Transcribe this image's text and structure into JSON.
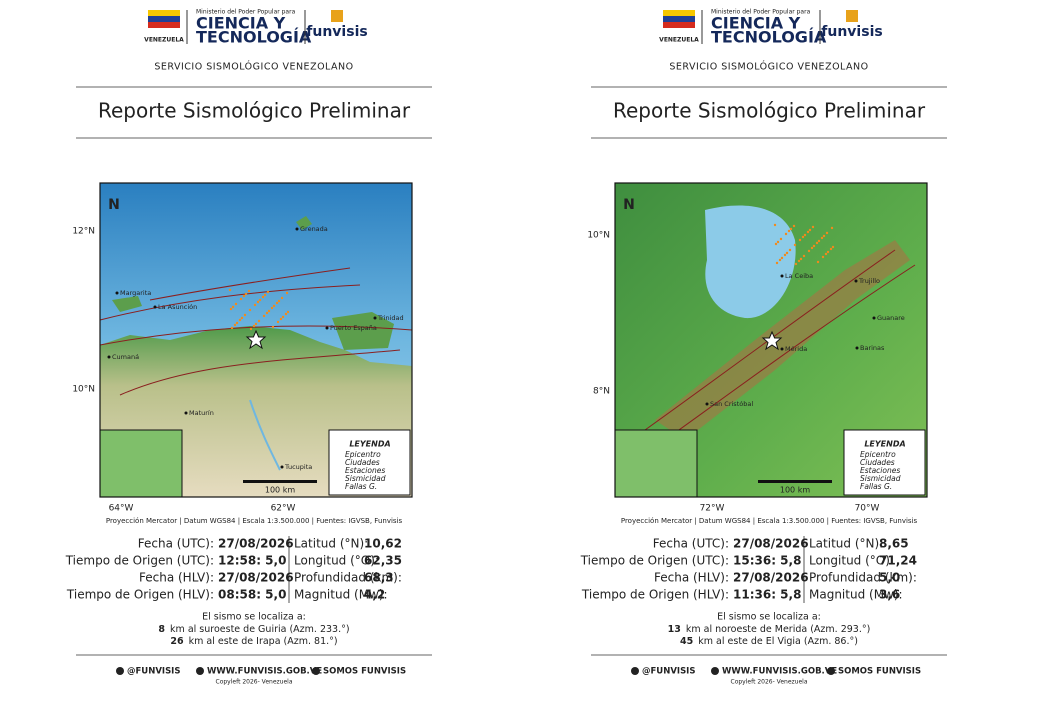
{
  "reports": [
    {
      "header": {
        "ministry": "Ministerio del Poder Popular para",
        "line1": "CIENCIA Y",
        "line2": "TECNOLOGÍA",
        "country": "VENEZUELA",
        "brand": "funvisis"
      },
      "service": "SERVICIO SISMOLÓGICO VENEZOLANO",
      "title": "Reporte Sismológico Preliminar",
      "map": {
        "lat_labels": [
          "12°N",
          "10°N"
        ],
        "lon_labels": [
          "64°W",
          "62°W"
        ],
        "north": "N",
        "scale": "100 km",
        "places": [
          "Grenada",
          "Margarita",
          "La Asunción",
          "Cumaná",
          "Maturín",
          "Puerto España",
          "Trinidad",
          "Tucupita"
        ],
        "legend": {
          "title": "LEYENDA",
          "items": [
            "Epicentro",
            "Ciudades",
            "Estaciones",
            "Sismicidad",
            "Fallas G."
          ]
        }
      },
      "caption": "Proyección Mercator | Datum WGS84 | Escala 1:3.500.000 | Fuentes: IGVSB, Funvisis",
      "details": {
        "left": [
          [
            "Fecha (UTC):",
            "27/08/2026"
          ],
          [
            "Tiempo de Origen (UTC):",
            "12:58: 5,0"
          ],
          [
            "Fecha (HLV):",
            "27/08/2026"
          ],
          [
            "Tiempo de Origen (HLV):",
            "08:58: 5,0"
          ]
        ],
        "right": [
          [
            "Latitud (°N):",
            "10,62"
          ],
          [
            "Longitud (°O):",
            "62,35"
          ],
          [
            "Profundidad (km):",
            "68,3"
          ],
          [
            "Magnitud (Mw):",
            "4,2"
          ]
        ]
      },
      "location": {
        "intro": "El sismo se localiza a:",
        "lines": [
          [
            "8",
            "km al suroeste de Guiria (Azm. 233.°)"
          ],
          [
            "26",
            "km al este de Irapa (Azm. 81.°)"
          ]
        ]
      },
      "footer": {
        "social": "@FUNVISIS",
        "web": "WWW.FUNVISIS.GOB.VE",
        "somos": "SOMOS FUNVISIS",
        "copyright": "Copyleft 2026- Venezuela"
      }
    },
    {
      "header": {
        "ministry": "Ministerio del Poder Popular para",
        "line1": "CIENCIA Y",
        "line2": "TECNOLOGÍA",
        "country": "VENEZUELA",
        "brand": "funvisis"
      },
      "service": "SERVICIO SISMOLÓGICO VENEZOLANO",
      "title": "Reporte Sismológico Preliminar",
      "map": {
        "lat_labels": [
          "10°N",
          "8°N"
        ],
        "lon_labels": [
          "72°W",
          "70°W"
        ],
        "north": "N",
        "scale": "100 km",
        "places": [
          "Trujillo",
          "La Ceiba",
          "Guanare",
          "Barinas",
          "Mérida",
          "San Cristóbal"
        ],
        "legend": {
          "title": "LEYENDA",
          "items": [
            "Epicentro",
            "Ciudades",
            "Estaciones",
            "Sismicidad",
            "Fallas G."
          ]
        }
      },
      "caption": "Proyección Mercator | Datum WGS84 | Escala 1:3.500.000 | Fuentes: IGVSB, Funvisis",
      "details": {
        "left": [
          [
            "Fecha (UTC):",
            "27/08/2026"
          ],
          [
            "Tiempo de Origen (UTC):",
            "15:36: 5,8"
          ],
          [
            "Fecha (HLV):",
            "27/08/2026"
          ],
          [
            "Tiempo de Origen (HLV):",
            "11:36: 5,8"
          ]
        ],
        "right": [
          [
            "Latitud (°N):",
            "8,65"
          ],
          [
            "Longitud (°O):",
            "71,24"
          ],
          [
            "Profundidad (km):",
            "5,0"
          ],
          [
            "Magnitud (Mw):",
            "3,6"
          ]
        ]
      },
      "location": {
        "intro": "El sismo se localiza a:",
        "lines": [
          [
            "13",
            "km al noroeste de Merida (Azm. 293.°)"
          ],
          [
            "45",
            "km al este de El Vigia (Azm. 86.°)"
          ]
        ]
      },
      "footer": {
        "social": "@FUNVISIS",
        "web": "WWW.FUNVISIS.GOB.VE",
        "somos": "SOMOS FUNVISIS",
        "copyright": "Copyleft 2026- Venezuela"
      }
    }
  ]
}
